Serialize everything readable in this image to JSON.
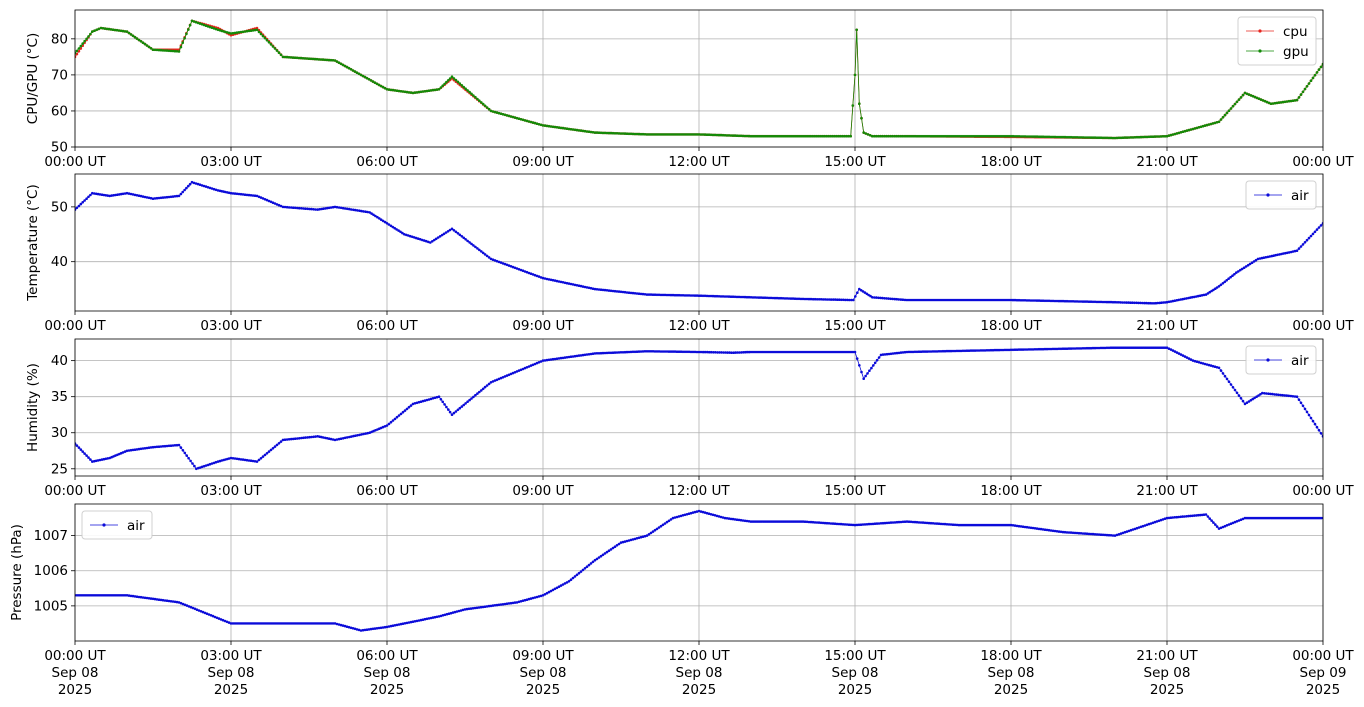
{
  "chart_data": [
    {
      "type": "line",
      "ylabel": "CPU/GPU (°C)",
      "xlim": [
        "00:00",
        "24:00"
      ],
      "ylim": [
        50,
        88
      ],
      "yticks": [
        50,
        60,
        70,
        80
      ],
      "xtick_labels": [
        [
          "00:00 UT"
        ],
        [
          "03:00 UT"
        ],
        [
          "06:00 UT"
        ],
        [
          "09:00 UT"
        ],
        [
          "12:00 UT"
        ],
        [
          "15:00 UT"
        ],
        [
          "18:00 UT"
        ],
        [
          "21:00 UT"
        ],
        [
          "00:00 UT"
        ]
      ],
      "grid": true,
      "legend": "top-right",
      "x": [
        "00:00",
        "00:20",
        "00:30",
        "01:00",
        "01:30",
        "02:00",
        "02:15",
        "02:45",
        "03:00",
        "03:30",
        "04:00",
        "05:00",
        "06:00",
        "06:30",
        "07:00",
        "07:15",
        "08:00",
        "09:00",
        "10:00",
        "11:00",
        "12:00",
        "13:00",
        "14:00",
        "14:55",
        "15:00",
        "15:02",
        "15:05",
        "15:10",
        "15:20",
        "16:00",
        "18:00",
        "20:00",
        "21:00",
        "21:30",
        "22:00",
        "22:30",
        "23:00",
        "23:30",
        "24:00"
      ],
      "series": [
        {
          "name": "cpu",
          "color": "#e6261f",
          "values": [
            75,
            82,
            83,
            82,
            77,
            77,
            85,
            83,
            81,
            83,
            75,
            74,
            66,
            65,
            66,
            69,
            60,
            56,
            54,
            53.5,
            53.5,
            53,
            53,
            53,
            70,
            82.5,
            62,
            54,
            53,
            53,
            52.8,
            52.5,
            53,
            55,
            57,
            65,
            62,
            63,
            73
          ]
        },
        {
          "name": "gpu",
          "color": "#138a07",
          "values": [
            76,
            82,
            83,
            82,
            77,
            76.5,
            85,
            82.5,
            81.5,
            82.5,
            75,
            74,
            66,
            65,
            66,
            69.5,
            60,
            56,
            54,
            53.5,
            53.5,
            53,
            53,
            53,
            70,
            82.5,
            62,
            54,
            53,
            53,
            53,
            52.5,
            53,
            55,
            57,
            65,
            62,
            63,
            73
          ]
        }
      ]
    },
    {
      "type": "line",
      "ylabel": "Temperature (°C)",
      "xlim": [
        "00:00",
        "24:00"
      ],
      "ylim": [
        31,
        56
      ],
      "yticks": [
        40,
        50
      ],
      "xtick_labels": [
        [
          "00:00 UT"
        ],
        [
          "03:00 UT"
        ],
        [
          "06:00 UT"
        ],
        [
          "09:00 UT"
        ],
        [
          "12:00 UT"
        ],
        [
          "15:00 UT"
        ],
        [
          "18:00 UT"
        ],
        [
          "21:00 UT"
        ],
        [
          "00:00 UT"
        ]
      ],
      "grid": true,
      "legend": "top-right",
      "x": [
        "00:00",
        "00:20",
        "00:40",
        "01:00",
        "01:30",
        "02:00",
        "02:15",
        "02:45",
        "03:00",
        "03:30",
        "04:00",
        "04:40",
        "05:00",
        "05:40",
        "06:00",
        "06:20",
        "06:50",
        "07:15",
        "08:00",
        "09:00",
        "10:00",
        "11:00",
        "12:00",
        "13:00",
        "14:00",
        "14:58",
        "15:05",
        "15:20",
        "16:00",
        "18:00",
        "20:00",
        "20:45",
        "21:00",
        "21:45",
        "22:00",
        "22:20",
        "22:45",
        "23:30",
        "24:00"
      ],
      "series": [
        {
          "name": "air",
          "color": "#0b0bd9",
          "values": [
            49.5,
            52.5,
            52,
            52.5,
            51.5,
            52,
            54.5,
            53,
            52.5,
            52,
            50,
            49.5,
            50,
            49,
            47,
            45,
            43.5,
            46,
            40.5,
            37,
            35,
            34,
            33.8,
            33.5,
            33.2,
            33,
            35,
            33.5,
            33,
            33,
            32.6,
            32.4,
            32.6,
            34,
            35.5,
            38,
            40.5,
            42,
            47
          ]
        }
      ]
    },
    {
      "type": "line",
      "ylabel": "Humidity (%)",
      "xlim": [
        "00:00",
        "24:00"
      ],
      "ylim": [
        24,
        43
      ],
      "yticks": [
        25,
        30,
        35,
        40
      ],
      "xtick_labels": [
        [
          "00:00 UT"
        ],
        [
          "03:00 UT"
        ],
        [
          "06:00 UT"
        ],
        [
          "09:00 UT"
        ],
        [
          "12:00 UT"
        ],
        [
          "15:00 UT"
        ],
        [
          "18:00 UT"
        ],
        [
          "21:00 UT"
        ],
        [
          "00:00 UT"
        ]
      ],
      "grid": true,
      "legend": "top-right",
      "x": [
        "00:00",
        "00:20",
        "00:40",
        "01:00",
        "01:30",
        "02:00",
        "02:20",
        "02:45",
        "03:00",
        "03:30",
        "04:00",
        "04:40",
        "05:00",
        "05:40",
        "06:00",
        "06:30",
        "07:00",
        "07:15",
        "08:00",
        "09:00",
        "10:00",
        "11:00",
        "12:00",
        "12:40",
        "13:00",
        "14:00",
        "15:00",
        "15:10",
        "15:30",
        "16:00",
        "18:00",
        "20:00",
        "21:00",
        "21:30",
        "22:00",
        "22:30",
        "22:50",
        "23:30",
        "24:00"
      ],
      "series": [
        {
          "name": "air",
          "color": "#0b0bd9",
          "values": [
            28.5,
            26,
            26.5,
            27.5,
            28,
            28.3,
            25,
            26,
            26.5,
            26,
            29,
            29.5,
            29,
            30,
            31,
            34,
            35,
            32.5,
            37,
            40,
            41,
            41.3,
            41.2,
            41.1,
            41.2,
            41.2,
            41.2,
            37.5,
            40.8,
            41.2,
            41.5,
            41.8,
            41.8,
            40,
            39,
            34,
            35.5,
            35,
            29.5
          ]
        }
      ]
    },
    {
      "type": "line",
      "ylabel": "Pressure (hPa)",
      "xlim": [
        "2025-09-08 00:00",
        "2025-09-09 00:00"
      ],
      "ylim": [
        1004.0,
        1007.9
      ],
      "yticks": [
        1005,
        1006,
        1007
      ],
      "xtick_labels": [
        [
          "00:00 UT",
          "Sep 08",
          "2025"
        ],
        [
          "03:00 UT",
          "Sep 08",
          "2025"
        ],
        [
          "06:00 UT",
          "Sep 08",
          "2025"
        ],
        [
          "09:00 UT",
          "Sep 08",
          "2025"
        ],
        [
          "12:00 UT",
          "Sep 08",
          "2025"
        ],
        [
          "15:00 UT",
          "Sep 08",
          "2025"
        ],
        [
          "18:00 UT",
          "Sep 08",
          "2025"
        ],
        [
          "21:00 UT",
          "Sep 08",
          "2025"
        ],
        [
          "00:00 UT",
          "Sep 09",
          "2025"
        ]
      ],
      "grid": true,
      "legend": "top-left",
      "x": [
        "00:00",
        "01:00",
        "02:00",
        "02:30",
        "03:00",
        "04:00",
        "05:00",
        "05:30",
        "06:00",
        "07:00",
        "07:30",
        "08:00",
        "08:30",
        "09:00",
        "09:30",
        "10:00",
        "10:30",
        "11:00",
        "11:30",
        "12:00",
        "12:30",
        "13:00",
        "14:00",
        "15:00",
        "16:00",
        "17:00",
        "18:00",
        "19:00",
        "20:00",
        "21:00",
        "21:45",
        "22:00",
        "22:30",
        "23:00",
        "24:00"
      ],
      "series": [
        {
          "name": "air",
          "color": "#0b0bd9",
          "values": [
            1005.3,
            1005.3,
            1005.1,
            1004.8,
            1004.5,
            1004.5,
            1004.5,
            1004.3,
            1004.4,
            1004.7,
            1004.9,
            1005,
            1005.1,
            1005.3,
            1005.7,
            1006.3,
            1006.8,
            1007,
            1007.5,
            1007.7,
            1007.5,
            1007.4,
            1007.4,
            1007.3,
            1007.4,
            1007.3,
            1007.3,
            1007.1,
            1007,
            1007.5,
            1007.6,
            1007.2,
            1007.5,
            1007.5,
            1007.5
          ]
        }
      ]
    }
  ]
}
